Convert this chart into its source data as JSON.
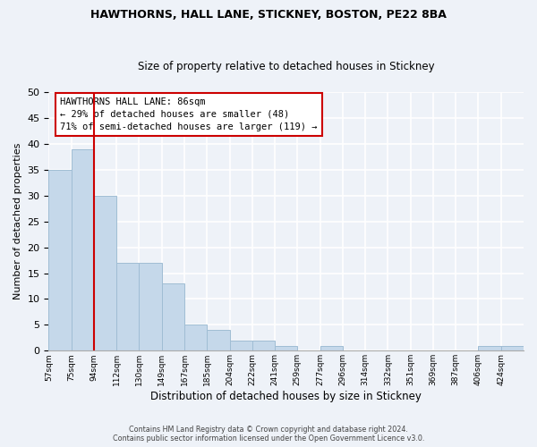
{
  "title1": "HAWTHORNS, HALL LANE, STICKNEY, BOSTON, PE22 8BA",
  "title2": "Size of property relative to detached houses in Stickney",
  "xlabel": "Distribution of detached houses by size in Stickney",
  "ylabel": "Number of detached properties",
  "bar_color": "#c5d8ea",
  "bar_edge_color": "#a0bdd4",
  "background_color": "#eef2f8",
  "grid_color": "#ffffff",
  "bin_labels": [
    "57sqm",
    "75sqm",
    "94sqm",
    "112sqm",
    "130sqm",
    "149sqm",
    "167sqm",
    "185sqm",
    "204sqm",
    "222sqm",
    "241sqm",
    "259sqm",
    "277sqm",
    "296sqm",
    "314sqm",
    "332sqm",
    "351sqm",
    "369sqm",
    "387sqm",
    "406sqm",
    "424sqm"
  ],
  "bar_values": [
    35,
    39,
    30,
    17,
    17,
    13,
    5,
    4,
    2,
    2,
    1,
    0,
    1,
    0,
    0,
    0,
    0,
    0,
    0,
    1,
    1
  ],
  "num_bins": 21,
  "ylim": [
    0,
    50
  ],
  "yticks": [
    0,
    5,
    10,
    15,
    20,
    25,
    30,
    35,
    40,
    45,
    50
  ],
  "property_bar_index": 1.5,
  "annotation_line1": "HAWTHORNS HALL LANE: 86sqm",
  "annotation_line2": "← 29% of detached houses are smaller (48)",
  "annotation_line3": "71% of semi-detached houses are larger (119) →",
  "footer_text": "Contains HM Land Registry data © Crown copyright and database right 2024.\nContains public sector information licensed under the Open Government Licence v3.0.",
  "box_face_color": "#ffffff",
  "box_edge_color": "#cc0000",
  "line_color": "#cc0000"
}
